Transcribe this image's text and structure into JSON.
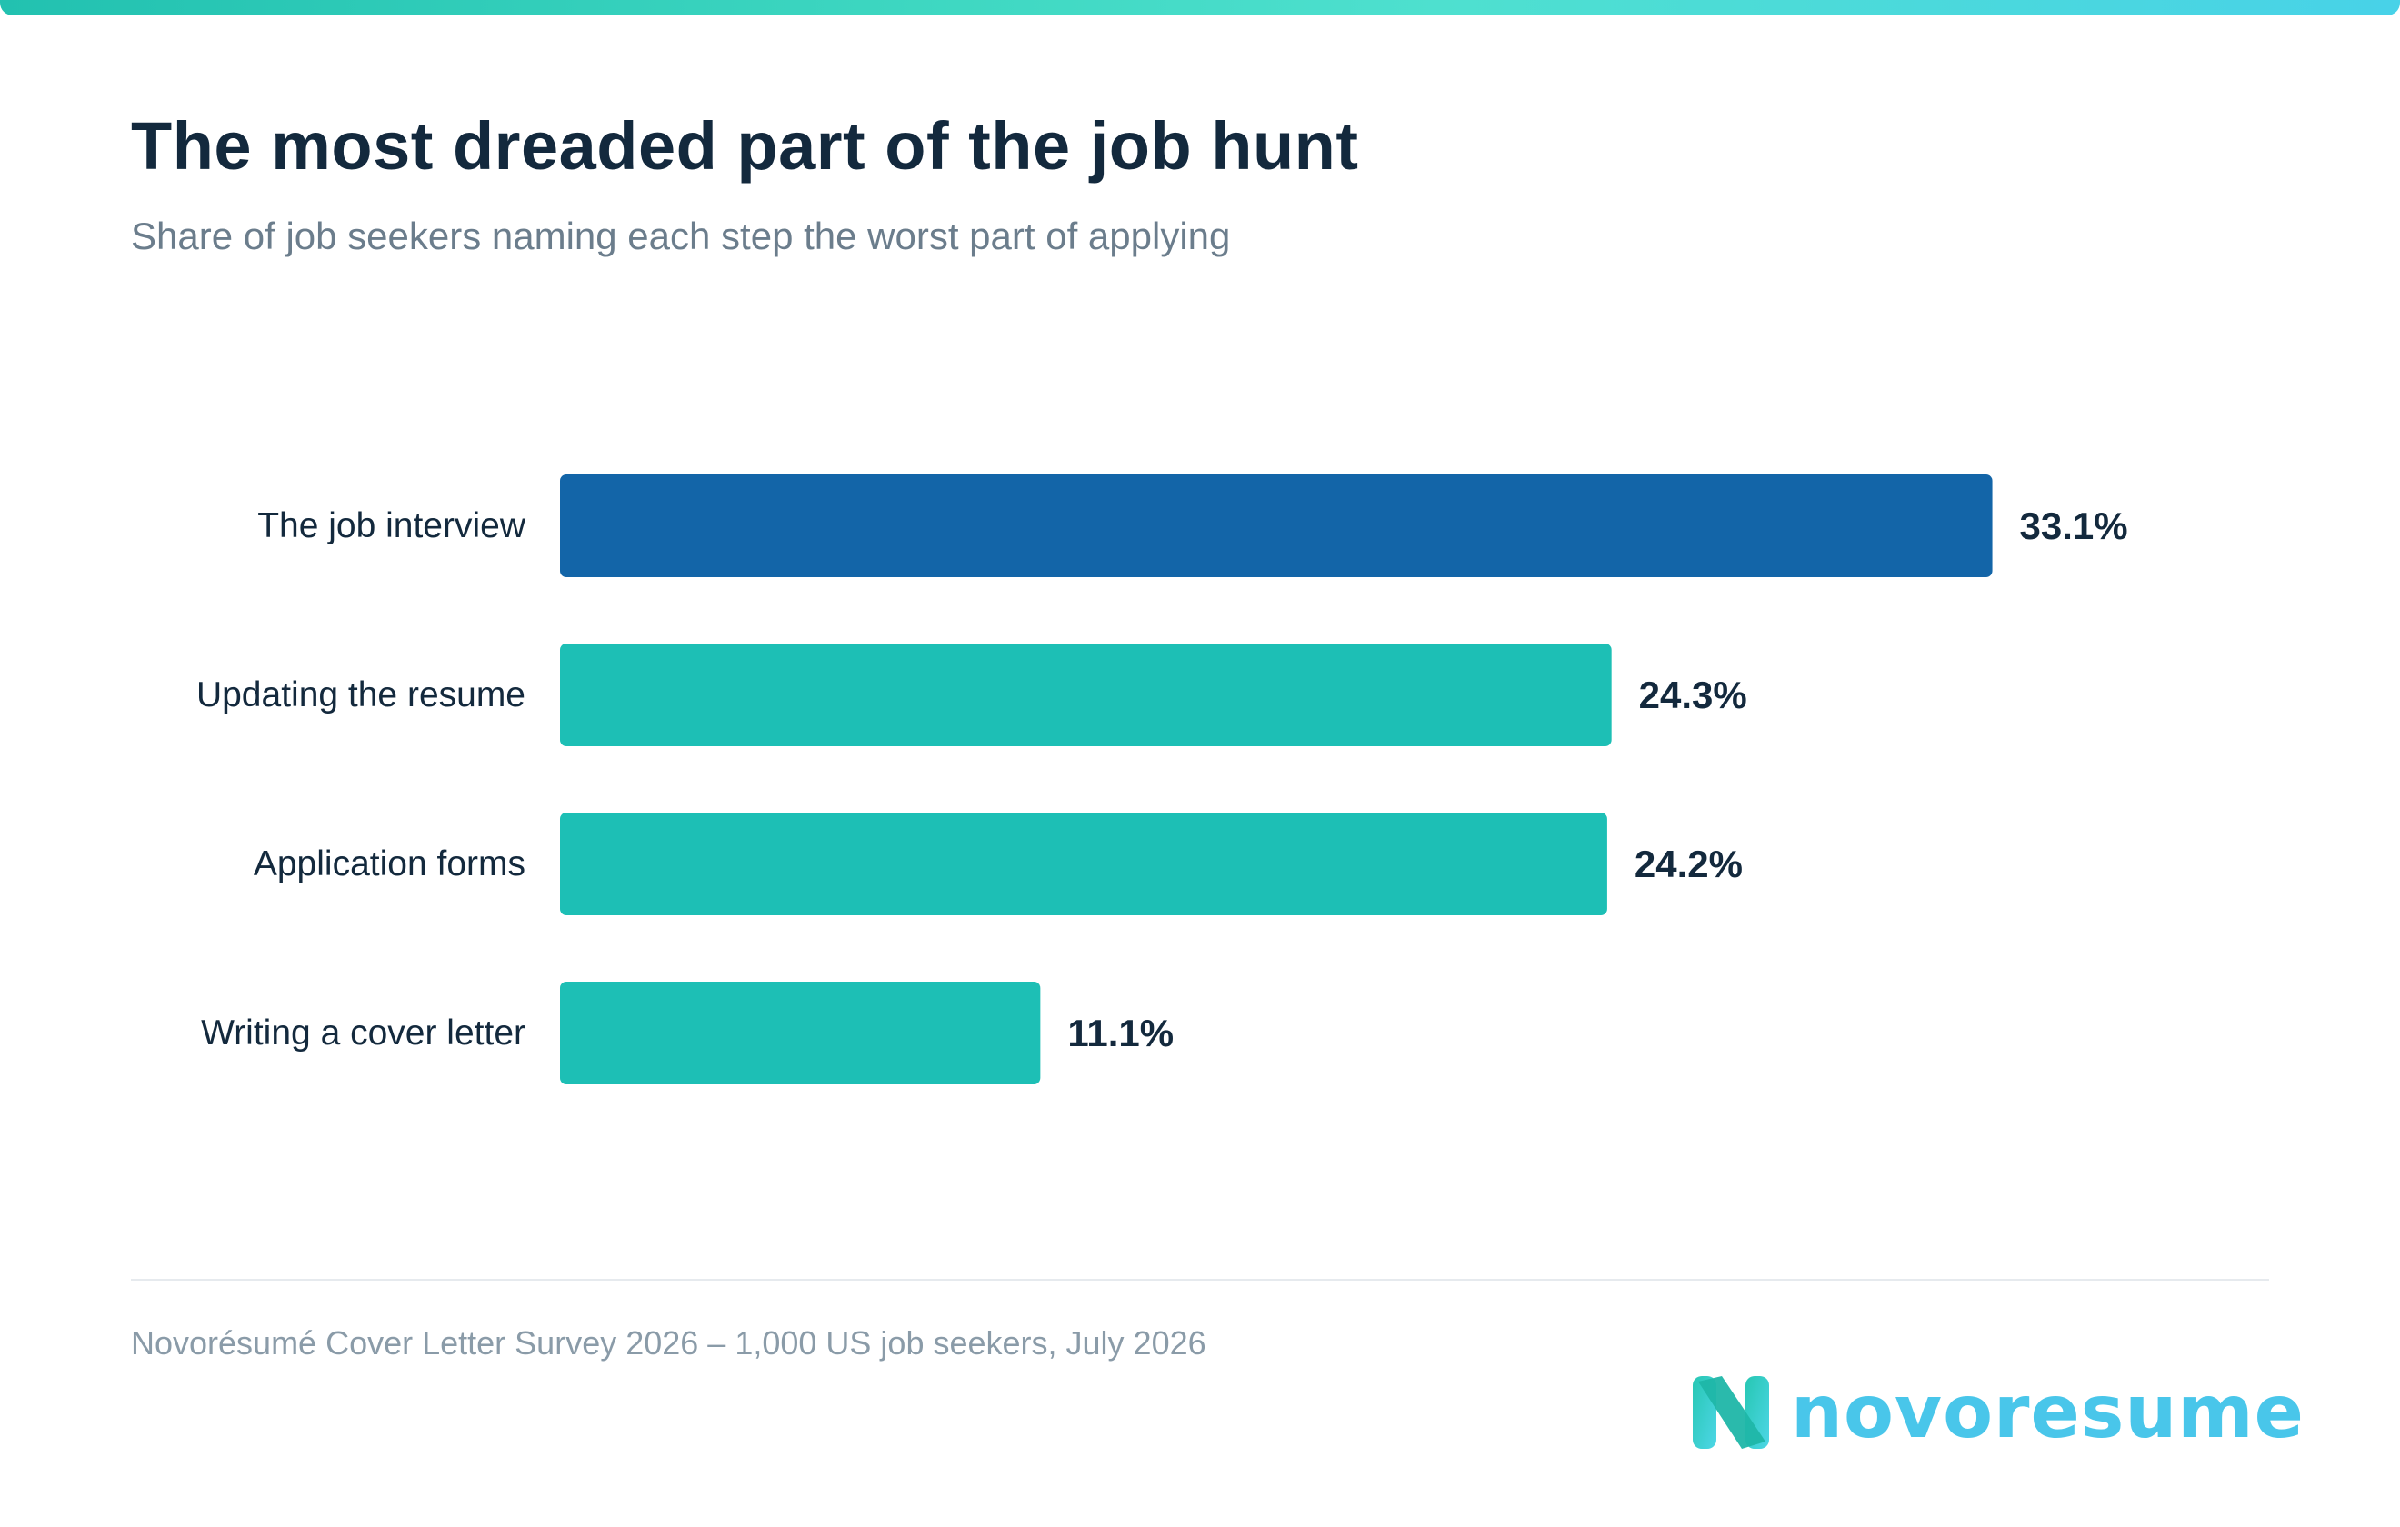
{
  "title": "The most dreaded part of the job hunt",
  "subtitle": "Share of job seekers naming each step the worst part of applying",
  "footnote": "Novorésumé Cover Letter Survey 2026 – 1,000 US job seekers, July 2026",
  "logo": {
    "wordmark": "novoresume",
    "icon": "n-logo-icon",
    "color": "#49c6ea"
  },
  "colors": {
    "highlight_bar": "#1365a8",
    "bar": "#1dbfb5",
    "label_text": "#13293d",
    "accent_gradient": [
      "#22c1b0",
      "#48d2e8"
    ]
  },
  "chart_data": {
    "type": "bar",
    "orientation": "horizontal",
    "categories": [
      "The job interview",
      "Updating the resume",
      "Application forms",
      "Writing a cover letter"
    ],
    "values": [
      33.1,
      24.3,
      24.2,
      11.1
    ],
    "value_labels": [
      "33.1%",
      "24.3%",
      "24.2%",
      "11.1%"
    ],
    "highlight_index": 0,
    "unit": "%",
    "title": "The most dreaded part of the job hunt",
    "xlabel": "",
    "ylabel": "",
    "grid": false,
    "legend": "none"
  }
}
